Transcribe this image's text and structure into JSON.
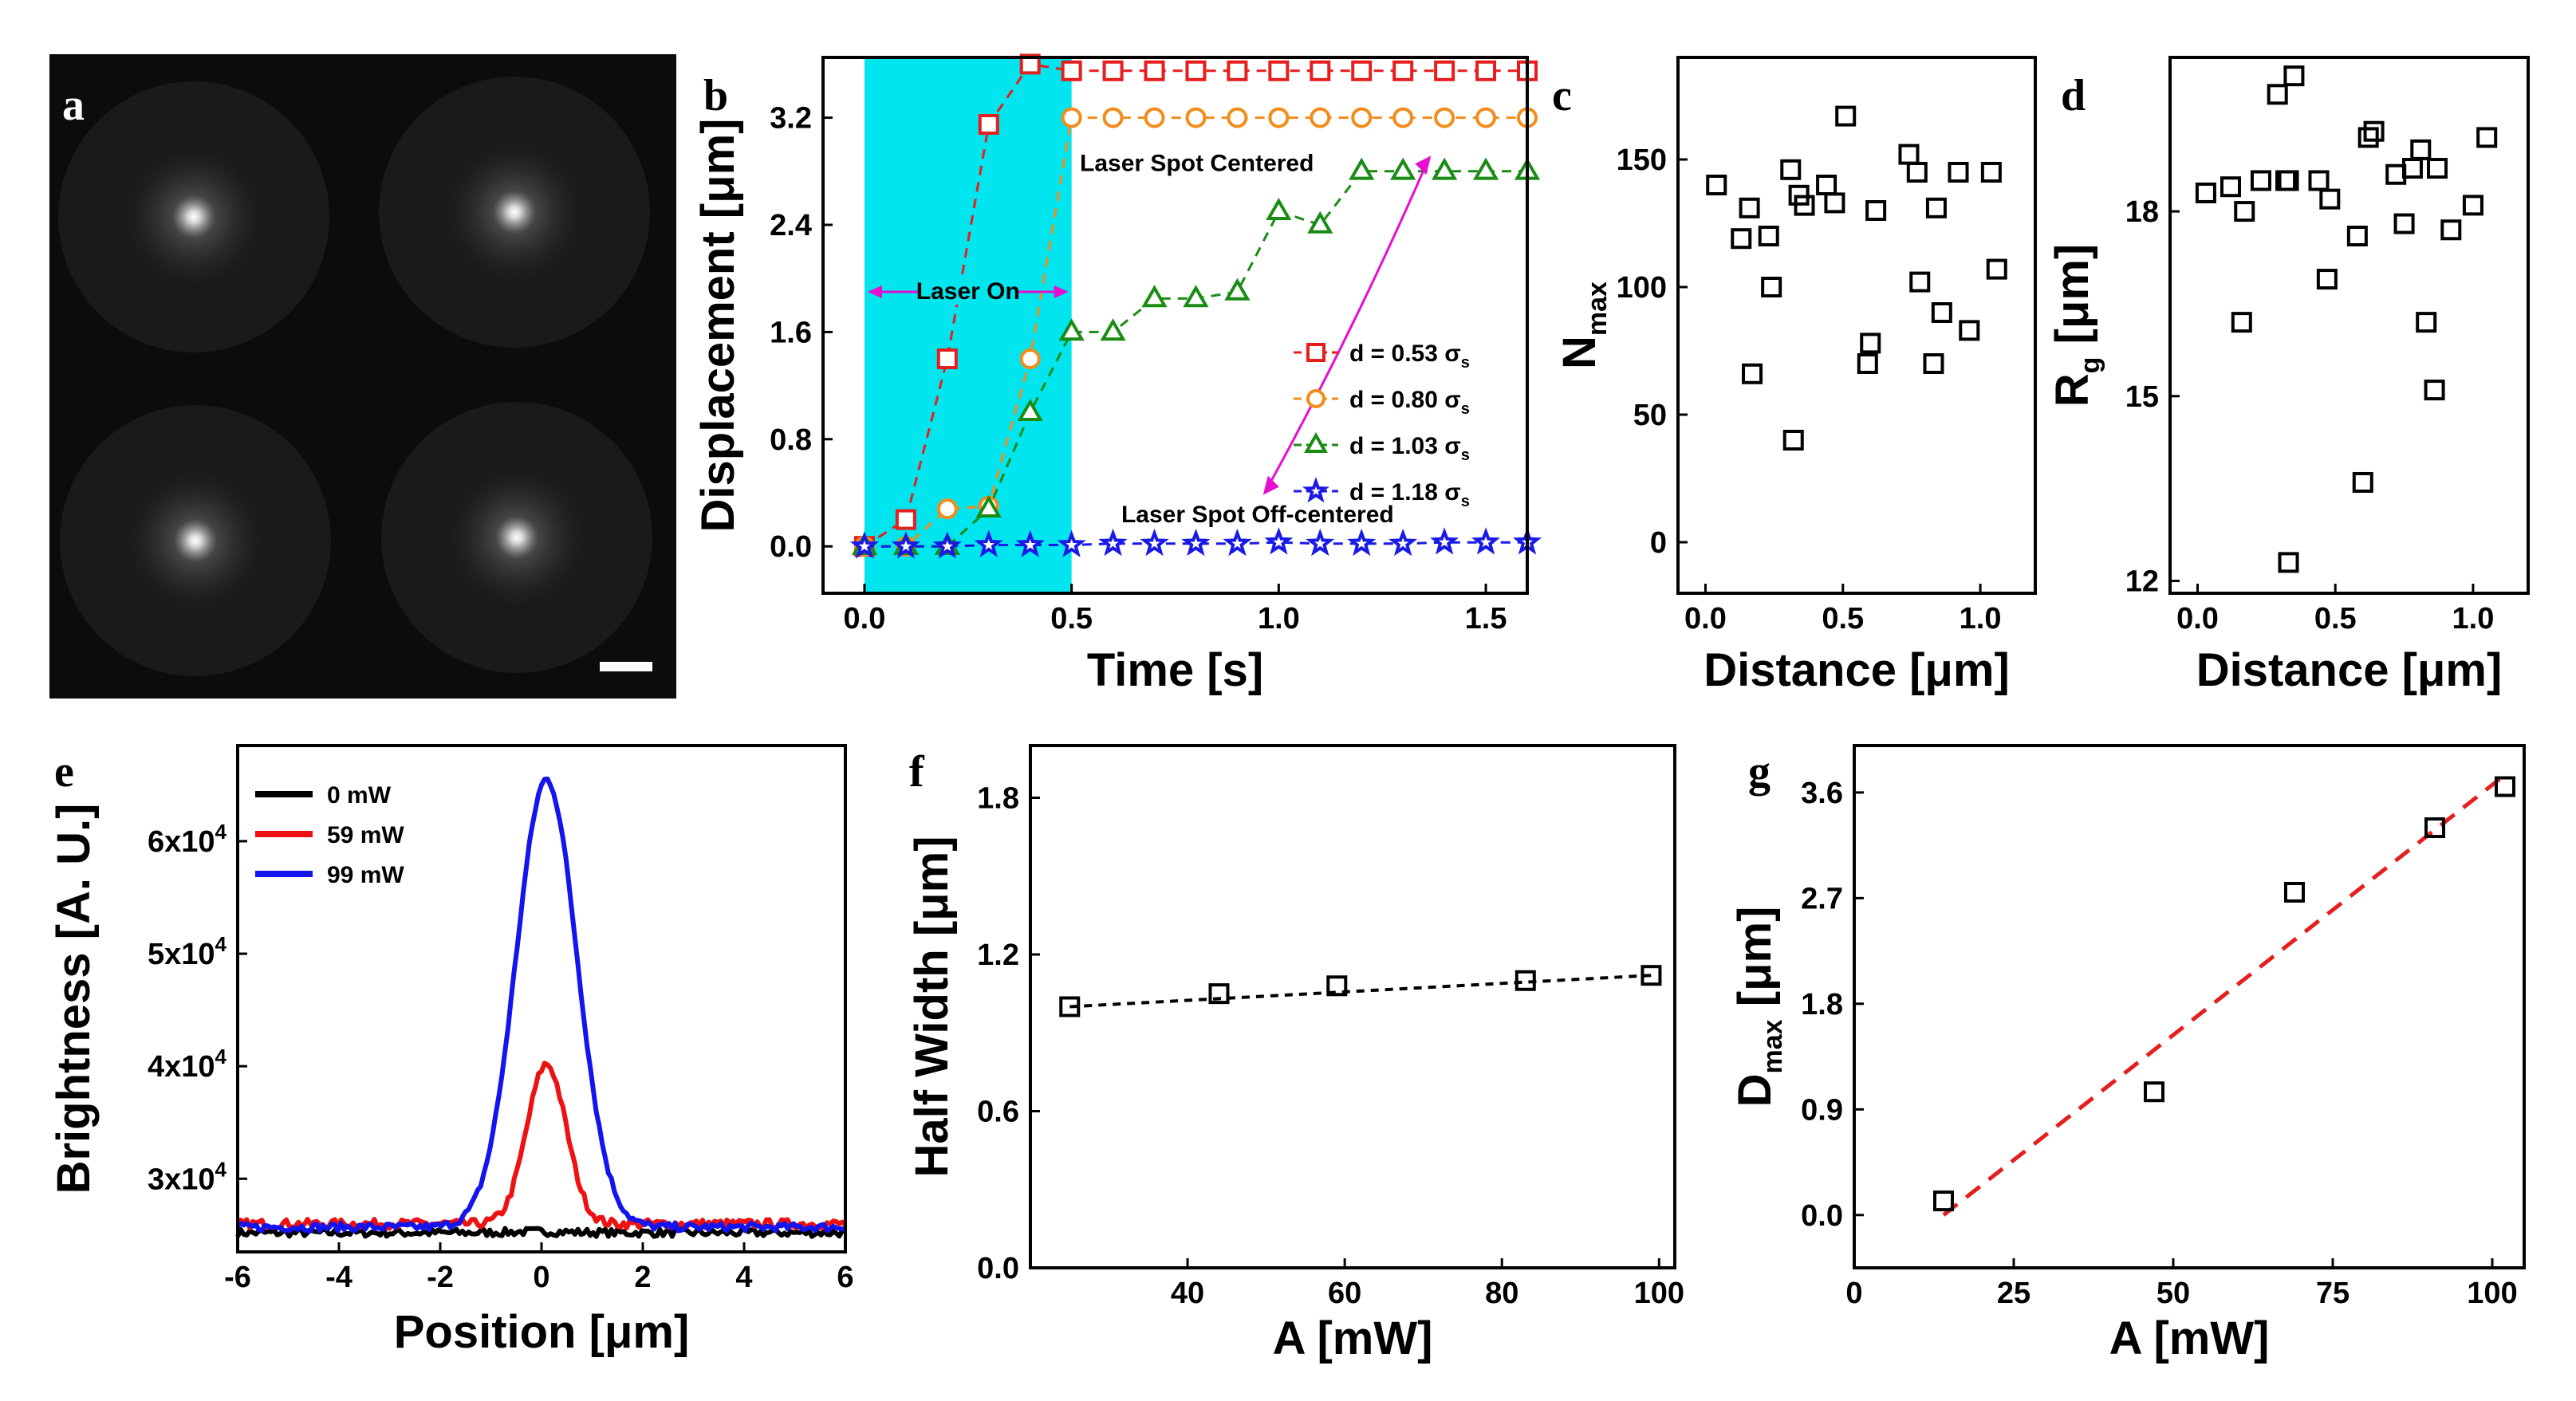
{
  "panels": {
    "a": {
      "letter": "a",
      "image": "fluorescence-micrograph",
      "spots": 4
    },
    "b": {
      "letter": "b",
      "type": "line",
      "xlabel": "Time [s]",
      "ylabel": "Displacement [μm]",
      "xlim": [
        -0.1,
        1.6
      ],
      "ylim": [
        -0.35,
        3.65
      ],
      "xticks": [
        {
          "v": 0,
          "t": "0.0"
        },
        {
          "v": 0.5,
          "t": "0.5"
        },
        {
          "v": 1.0,
          "t": "1.0"
        },
        {
          "v": 1.5,
          "t": "1.5"
        }
      ],
      "yticks": [
        {
          "v": 0,
          "t": "0.0"
        },
        {
          "v": 0.8,
          "t": "0.8"
        },
        {
          "v": 1.6,
          "t": "1.6"
        },
        {
          "v": 2.4,
          "t": "2.4"
        },
        {
          "v": 3.2,
          "t": "3.2"
        }
      ],
      "shade": [
        0,
        0.5
      ],
      "shade_color": "#00e5ee",
      "annotations": {
        "laser_on": "Laser On",
        "centered": "Laser Spot Centered",
        "off_centered": "Laser Spot Off-centered",
        "color": "#e60fd0"
      },
      "series": [
        {
          "name": "d = 0.53 σ",
          "sub": "s",
          "color": "#e51e1e",
          "marker": "square",
          "x": [
            0,
            0.1,
            0.2,
            0.3,
            0.4,
            0.5,
            0.6,
            0.7,
            0.8,
            0.9,
            1.0,
            1.1,
            1.2,
            1.3,
            1.4,
            1.5,
            1.6
          ],
          "y": [
            0,
            0.2,
            1.4,
            3.15,
            3.6,
            3.55,
            3.55,
            3.55,
            3.55,
            3.55,
            3.55,
            3.55,
            3.55,
            3.55,
            3.55,
            3.55,
            3.55
          ]
        },
        {
          "name": "d = 0.80 σ",
          "sub": "s",
          "color": "#f28c1a",
          "marker": "circle",
          "x": [
            0,
            0.1,
            0.2,
            0.3,
            0.4,
            0.5,
            0.6,
            0.7,
            0.8,
            0.9,
            1.0,
            1.1,
            1.2,
            1.3,
            1.4,
            1.5,
            1.6
          ],
          "y": [
            0,
            0,
            0.28,
            0.3,
            1.4,
            3.2,
            3.2,
            3.2,
            3.2,
            3.2,
            3.2,
            3.2,
            3.2,
            3.2,
            3.2,
            3.2,
            3.2
          ]
        },
        {
          "name": "d = 1.03 σ",
          "sub": "s",
          "color": "#1a8c14",
          "marker": "triangle",
          "x": [
            0,
            0.1,
            0.2,
            0.3,
            0.4,
            0.5,
            0.6,
            0.7,
            0.8,
            0.9,
            1.0,
            1.1,
            1.2,
            1.3,
            1.4,
            1.5,
            1.6
          ],
          "y": [
            0,
            0,
            0,
            0.28,
            1.0,
            1.6,
            1.6,
            1.85,
            1.85,
            1.9,
            2.5,
            2.4,
            2.8,
            2.8,
            2.8,
            2.8,
            2.8
          ]
        },
        {
          "name": "d = 1.18 σ",
          "sub": "s",
          "color": "#1a1ae6",
          "marker": "star",
          "x": [
            0,
            0.1,
            0.2,
            0.3,
            0.4,
            0.5,
            0.6,
            0.7,
            0.8,
            0.9,
            1.0,
            1.1,
            1.2,
            1.3,
            1.4,
            1.5,
            1.6
          ],
          "y": [
            0,
            0,
            0,
            0.01,
            0.01,
            0.01,
            0.02,
            0.02,
            0.02,
            0.02,
            0.03,
            0.02,
            0.02,
            0.02,
            0.03,
            0.03,
            0.03
          ]
        }
      ]
    },
    "c": {
      "letter": "c",
      "type": "scatter",
      "xlabel": "Distance [μm]",
      "ylabel": "N",
      "ylabel_sub": "max",
      "xlim": [
        -0.1,
        1.2
      ],
      "ylim": [
        -20,
        190
      ],
      "xticks": [
        {
          "v": 0,
          "t": "0.0"
        },
        {
          "v": 0.5,
          "t": "0.5"
        },
        {
          "v": 1.0,
          "t": "1.0"
        }
      ],
      "yticks": [
        {
          "v": 0,
          "t": "0"
        },
        {
          "v": 50,
          "t": "50"
        },
        {
          "v": 100,
          "t": "100"
        },
        {
          "v": 150,
          "t": "150"
        }
      ],
      "x": [
        0.04,
        0.13,
        0.16,
        0.17,
        0.23,
        0.24,
        0.31,
        0.32,
        0.34,
        0.36,
        0.44,
        0.47,
        0.51,
        0.59,
        0.6,
        0.62,
        0.74,
        0.77,
        0.78,
        0.83,
        0.84,
        0.86,
        0.92,
        0.96,
        1.04,
        1.06
      ],
      "y": [
        140,
        119,
        131,
        66,
        120,
        100,
        146,
        40,
        136,
        132,
        140,
        133,
        167,
        70,
        78,
        130,
        152,
        145,
        102,
        70,
        131,
        90,
        145,
        83,
        145,
        107
      ]
    },
    "d": {
      "letter": "d",
      "type": "scatter",
      "xlabel": "Distance [μm]",
      "ylabel": "R",
      "ylabel_sub": "g",
      "ylabel_unit": " [μm]",
      "xlim": [
        -0.1,
        1.2
      ],
      "ylim": [
        11.8,
        20.5
      ],
      "xticks": [
        {
          "v": 0,
          "t": "0.0"
        },
        {
          "v": 0.5,
          "t": "0.5"
        },
        {
          "v": 1.0,
          "t": "1.0"
        }
      ],
      "yticks": [
        {
          "v": 12,
          "t": "12"
        },
        {
          "v": 15,
          "t": "15"
        },
        {
          "v": 18,
          "t": "18"
        }
      ],
      "x": [
        0.03,
        0.12,
        0.16,
        0.17,
        0.23,
        0.29,
        0.32,
        0.33,
        0.33,
        0.35,
        0.44,
        0.47,
        0.48,
        0.58,
        0.6,
        0.62,
        0.64,
        0.72,
        0.75,
        0.78,
        0.81,
        0.83,
        0.86,
        0.87,
        0.92,
        1.0,
        1.05
      ],
      "y": [
        18.3,
        18.4,
        16.2,
        18.0,
        18.5,
        19.9,
        18.5,
        12.3,
        18.5,
        20.2,
        18.5,
        16.9,
        18.2,
        17.6,
        13.6,
        19.2,
        19.3,
        18.6,
        17.8,
        18.7,
        19.0,
        16.2,
        15.1,
        18.7,
        17.7,
        18.1,
        19.2
      ]
    },
    "e": {
      "letter": "e",
      "type": "line",
      "xlabel": "Position",
      "xlabel_unit": "[μm]",
      "ylabel": "Brightness [A. U.]",
      "xlim": [
        -6,
        6
      ],
      "ylim": [
        23500,
        68500
      ],
      "xticks": [
        {
          "v": -6,
          "t": "-6"
        },
        {
          "v": -4,
          "t": "-4"
        },
        {
          "v": -2,
          "t": "-2"
        },
        {
          "v": 0,
          "t": "0"
        },
        {
          "v": 2,
          "t": "2"
        },
        {
          "v": 4,
          "t": "4"
        },
        {
          "v": 6,
          "t": "6"
        }
      ],
      "yticks": [
        {
          "v": 30000,
          "m": "3x10",
          "e": "4"
        },
        {
          "v": 40000,
          "m": "4x10",
          "e": "4"
        },
        {
          "v": 50000,
          "m": "5x10",
          "e": "4"
        },
        {
          "v": 60000,
          "m": "6x10",
          "e": "4"
        }
      ],
      "series": [
        {
          "name": "0 mW",
          "color": "#000000",
          "baseline": 25200,
          "peak": 25300,
          "center": 0,
          "width": 0.8,
          "noise": 350
        },
        {
          "name": "59 mW",
          "color": "#ee1111",
          "baseline": 26000,
          "peak": 40200,
          "center": 0.1,
          "width": 0.55,
          "noise": 400
        },
        {
          "name": "99 mW",
          "color": "#1414ee",
          "baseline": 25700,
          "peak": 65500,
          "center": 0.1,
          "width": 0.85,
          "noise": 350
        }
      ]
    },
    "f": {
      "letter": "f",
      "type": "scatter",
      "xlabel": "A [mW]",
      "ylabel": "Half Width [μm]",
      "xlim": [
        20,
        102
      ],
      "ylim": [
        0,
        2.0
      ],
      "xticks": [
        {
          "v": 40,
          "t": "40"
        },
        {
          "v": 60,
          "t": "60"
        },
        {
          "v": 80,
          "t": "80"
        },
        {
          "v": 100,
          "t": "100"
        }
      ],
      "yticks": [
        {
          "v": 0,
          "t": "0.0"
        },
        {
          "v": 0.6,
          "t": "0.6"
        },
        {
          "v": 1.2,
          "t": "1.2"
        },
        {
          "v": 1.8,
          "t": "1.8"
        }
      ],
      "x": [
        25,
        44,
        59,
        83,
        99
      ],
      "y": [
        1.0,
        1.05,
        1.08,
        1.1,
        1.12
      ],
      "fit": [
        [
          25,
          1.0
        ],
        [
          99,
          1.12
        ]
      ],
      "fit_color": "#000000"
    },
    "g": {
      "letter": "g",
      "type": "scatter",
      "xlabel": "A [mW]",
      "ylabel": "D",
      "ylabel_sub": "max",
      "ylabel_unit": " [μm]",
      "xlim": [
        0,
        105
      ],
      "ylim": [
        -0.45,
        4.0
      ],
      "xticks": [
        {
          "v": 0,
          "t": "0"
        },
        {
          "v": 25,
          "t": "25"
        },
        {
          "v": 50,
          "t": "50"
        },
        {
          "v": 75,
          "t": "75"
        },
        {
          "v": 100,
          "t": "100"
        }
      ],
      "yticks": [
        {
          "v": 0,
          "t": "0.0"
        },
        {
          "v": 0.9,
          "t": "0.9"
        },
        {
          "v": 1.8,
          "t": "1.8"
        },
        {
          "v": 2.7,
          "t": "2.7"
        },
        {
          "v": 3.6,
          "t": "3.6"
        }
      ],
      "x": [
        14,
        47,
        69,
        91,
        102
      ],
      "y": [
        0.12,
        1.05,
        2.75,
        3.3,
        3.65
      ],
      "fit": [
        [
          14,
          0.0
        ],
        [
          102,
          3.75
        ]
      ],
      "fit_color": "#e51e1e"
    }
  }
}
